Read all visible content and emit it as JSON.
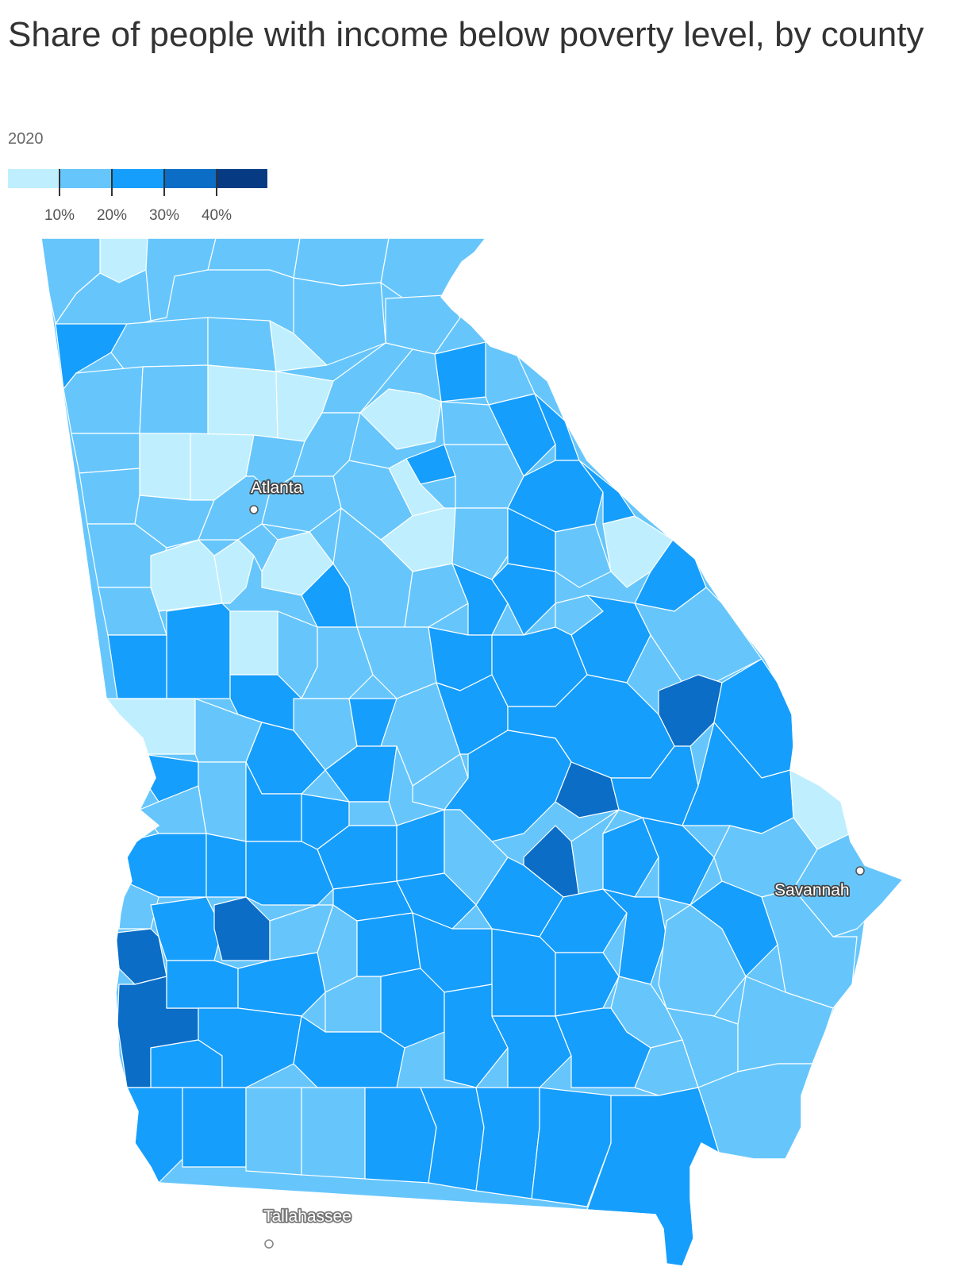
{
  "title": "Share of people with income below poverty level, by county",
  "subtitle": "2020",
  "legend": {
    "bins": [
      {
        "color": "#bfeffe"
      },
      {
        "color": "#66c6fc"
      },
      {
        "color": "#169efc"
      },
      {
        "color": "#0b6dc6"
      },
      {
        "color": "#063b84"
      }
    ],
    "ticks": [
      {
        "label": "10%"
      },
      {
        "label": "20%"
      },
      {
        "label": "30%"
      },
      {
        "label": "40%"
      }
    ]
  },
  "map": {
    "region": "Georgia",
    "cities": [
      {
        "name": "Atlanta",
        "kind": "in-state"
      },
      {
        "name": "Savannah",
        "kind": "in-state"
      },
      {
        "name": "Tallahassee",
        "kind": "outside"
      }
    ]
  }
}
